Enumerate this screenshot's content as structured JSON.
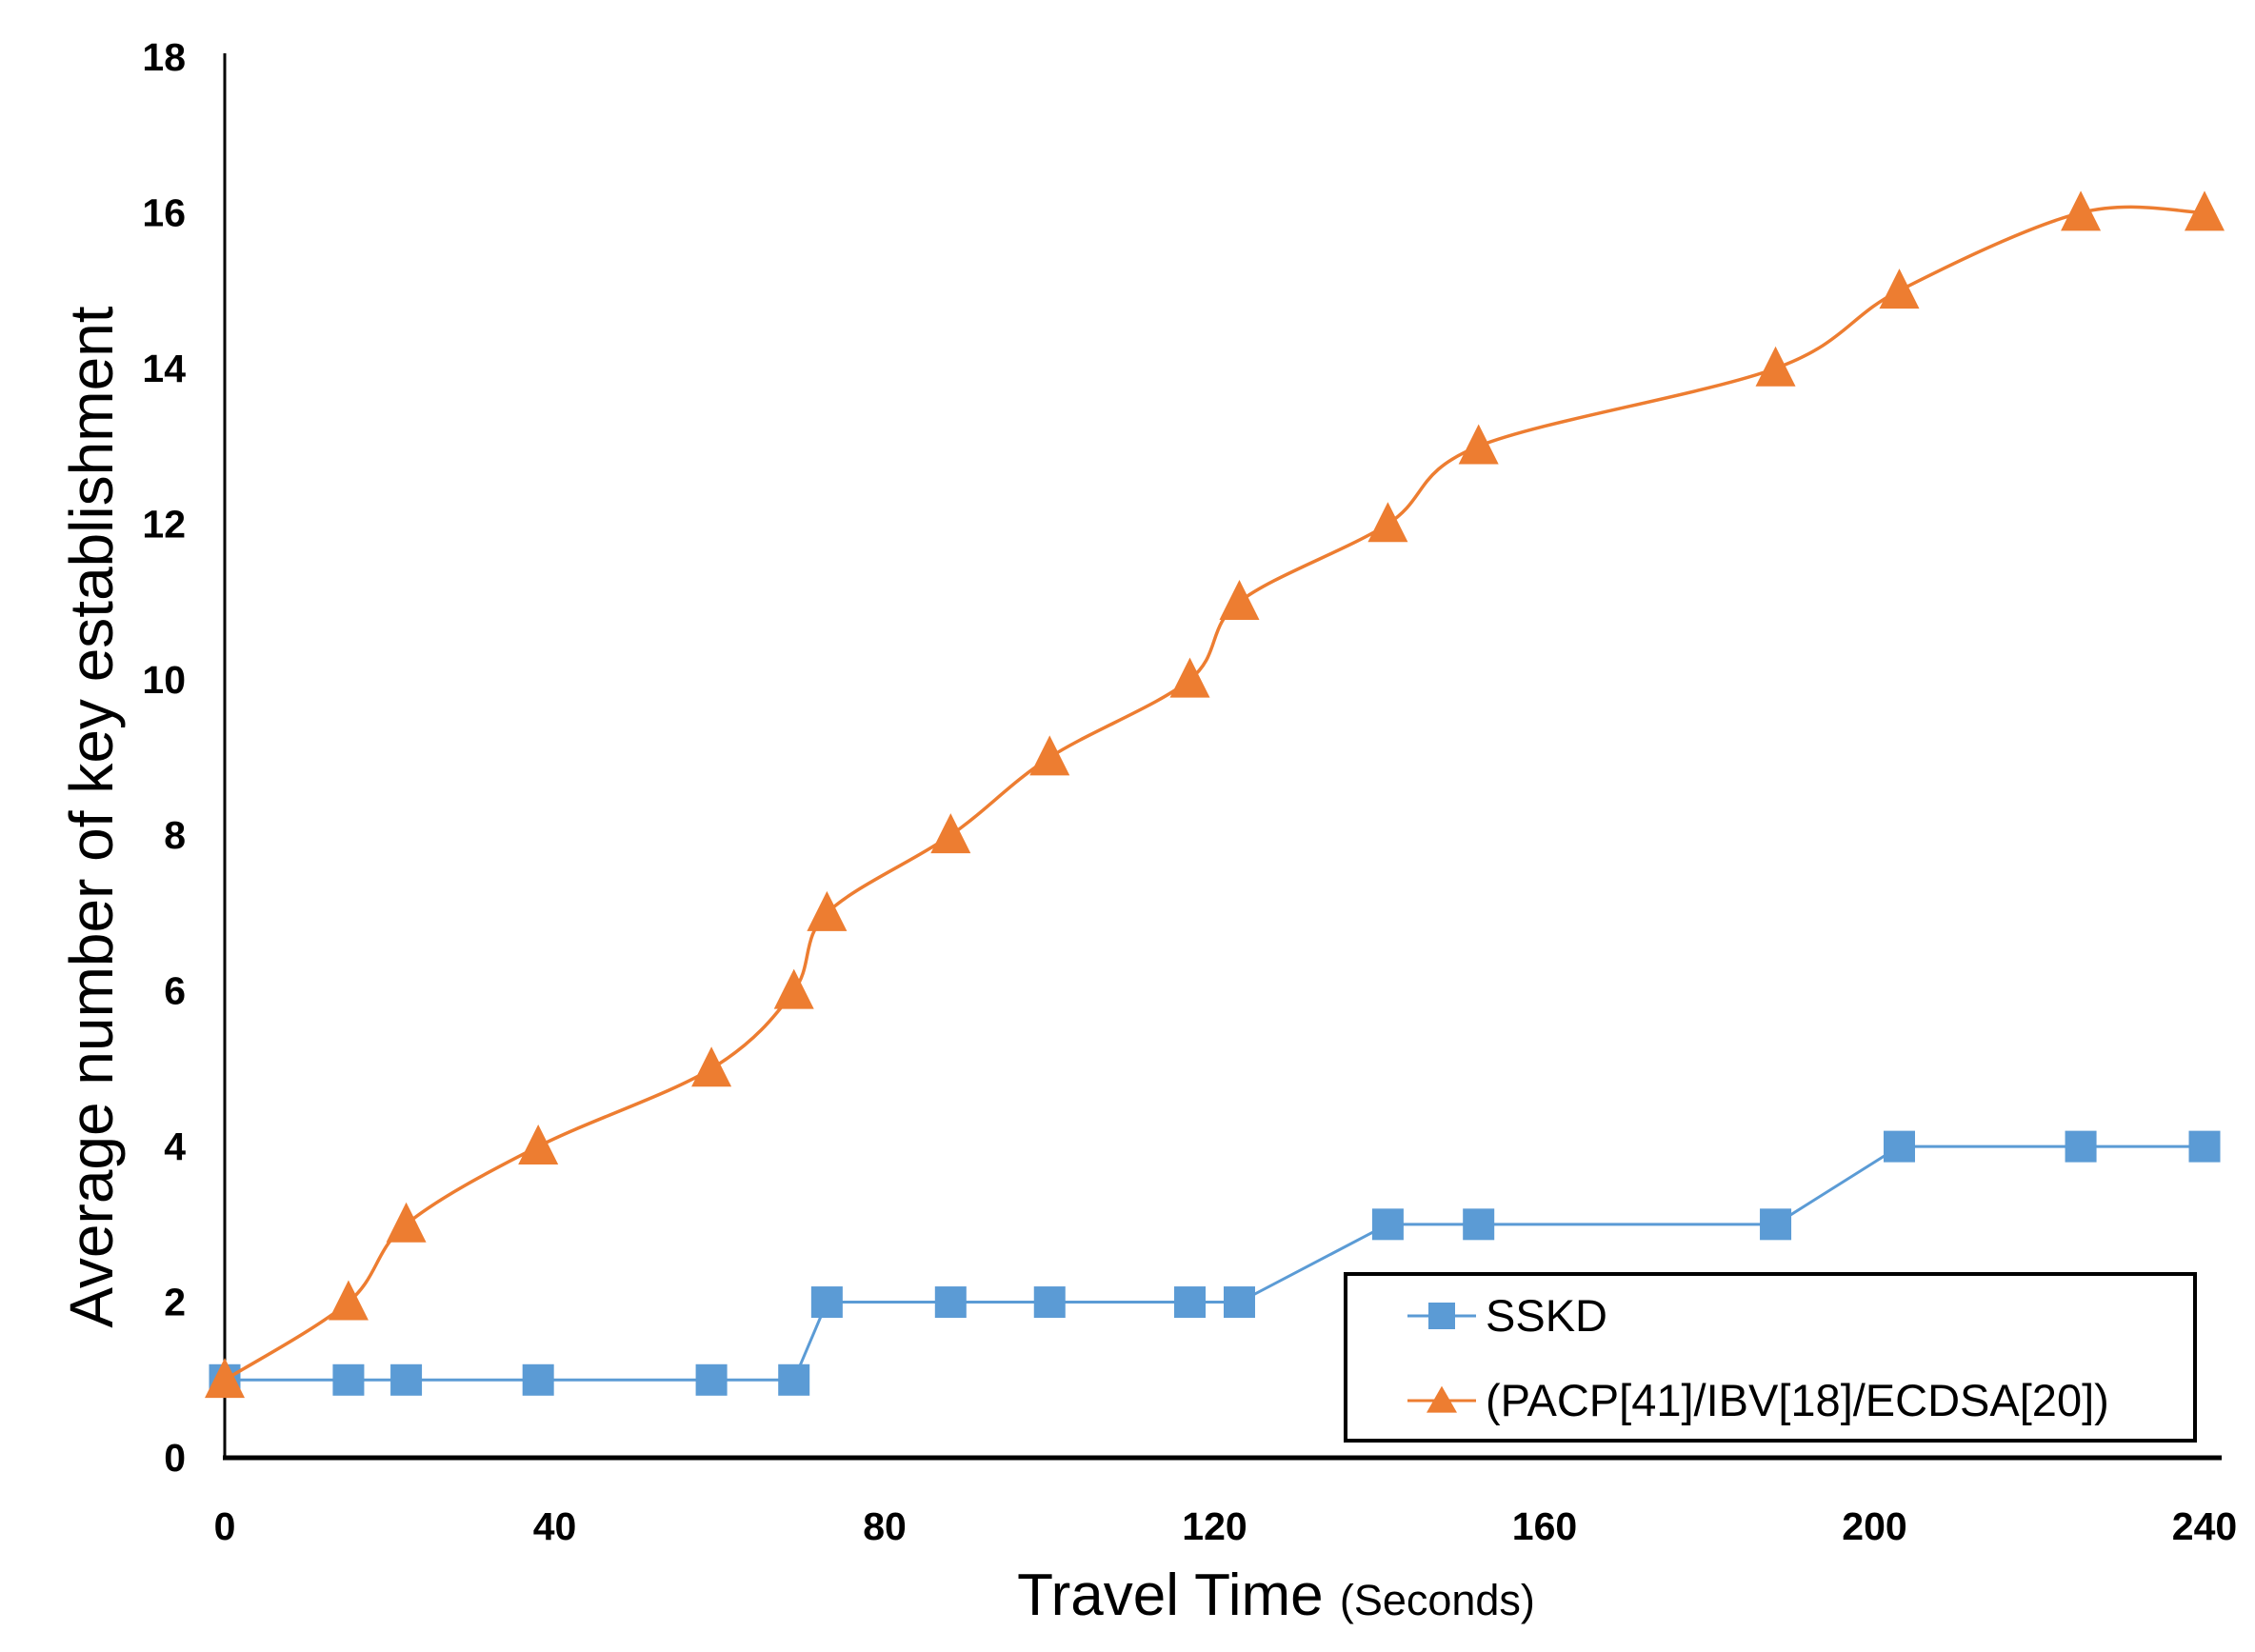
{
  "chart_data": {
    "type": "line",
    "title": "",
    "xlabel": "Travel Time",
    "xlabel_unit": "(Seconds)",
    "ylabel": "Average number of key establishment",
    "xlim": [
      0,
      240
    ],
    "ylim": [
      0,
      18
    ],
    "x_ticks": [
      0,
      40,
      80,
      120,
      160,
      200,
      240
    ],
    "y_ticks": [
      0,
      2,
      4,
      6,
      8,
      10,
      12,
      14,
      16,
      18
    ],
    "grid": false,
    "legend_position": "inside-bottom-right",
    "x": [
      0,
      15,
      22,
      38,
      59,
      69,
      73,
      88,
      100,
      117,
      123,
      141,
      152,
      188,
      203,
      225,
      240
    ],
    "series": [
      {
        "name": "SSKD",
        "marker": "square",
        "color": "#5B9BD5",
        "smooth": false,
        "values": [
          1,
          1,
          1,
          1,
          1,
          1,
          2,
          2,
          2,
          2,
          2,
          3,
          3,
          3,
          4,
          4,
          4
        ]
      },
      {
        "name": "(PACP[41]/IBV[18]/ECDSA[20])",
        "marker": "triangle",
        "color": "#ED7D31",
        "smooth": true,
        "values": [
          1,
          2,
          3,
          4,
          5,
          6,
          7,
          8,
          9,
          10,
          11,
          12,
          13,
          14,
          15,
          16,
          16
        ]
      }
    ],
    "axis_color": "#000000",
    "legend_border_color": "#000000",
    "legend_background": "#ffffff"
  }
}
